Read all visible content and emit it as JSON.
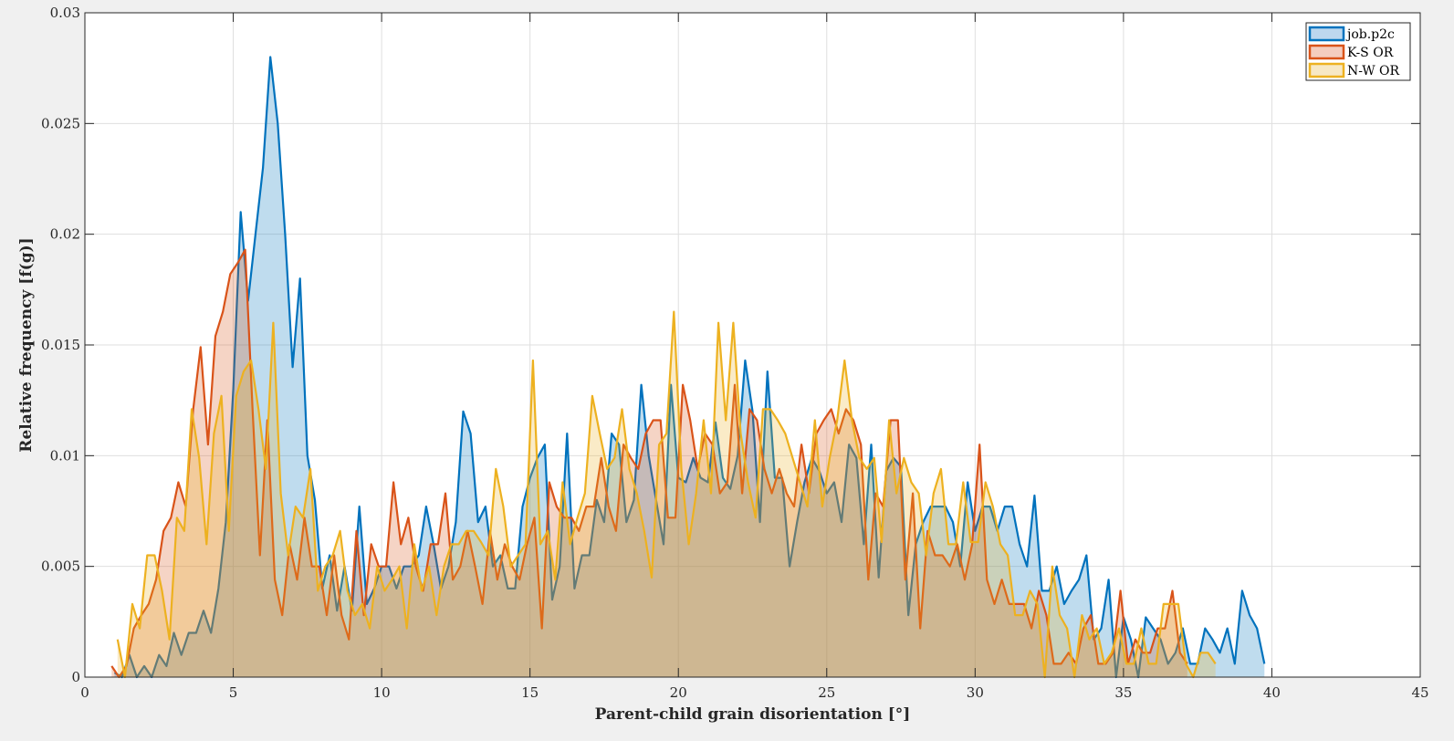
{
  "chart_data": {
    "type": "area",
    "title": "",
    "xlabel": "Parent-child grain disorientation [°]",
    "ylabel": "Relative frequency [f(g)]",
    "xlim": [
      0,
      45
    ],
    "ylim": [
      0,
      0.03
    ],
    "xticks": [
      "0",
      "5",
      "10",
      "15",
      "20",
      "25",
      "30",
      "35",
      "40",
      "45"
    ],
    "yticks": [
      "0",
      "0.005",
      "0.01",
      "0.015",
      "0.02",
      "0.025",
      "0.03"
    ],
    "grid": true,
    "legend_position": "northeast",
    "series": [
      {
        "name": "job.p2c",
        "color": "#0072BD",
        "fill": "#BDD7EE",
        "x_start": 1.0,
        "x_step": 0.25,
        "values": [
          0.0002,
          0.0,
          0.001,
          0.0,
          0.0005,
          0.0,
          0.001,
          0.0005,
          0.002,
          0.001,
          0.002,
          0.002,
          0.003,
          0.002,
          0.004,
          0.007,
          0.013,
          0.021,
          0.017,
          0.02,
          0.023,
          0.028,
          0.025,
          0.02,
          0.014,
          0.018,
          0.01,
          0.008,
          0.004,
          0.0055,
          0.003,
          0.005,
          0.003,
          0.0077,
          0.0033,
          0.004,
          0.005,
          0.005,
          0.004,
          0.005,
          0.005,
          0.0055,
          0.0077,
          0.006,
          0.004,
          0.005,
          0.007,
          0.012,
          0.011,
          0.007,
          0.0077,
          0.005,
          0.0055,
          0.004,
          0.004,
          0.0077,
          0.009,
          0.0099,
          0.0105,
          0.0035,
          0.005,
          0.011,
          0.004,
          0.0055,
          0.0055,
          0.008,
          0.007,
          0.011,
          0.0105,
          0.007,
          0.008,
          0.0132,
          0.01,
          0.008,
          0.006,
          0.0132,
          0.009,
          0.0088,
          0.0099,
          0.009,
          0.0088,
          0.0115,
          0.009,
          0.0085,
          0.01,
          0.0143,
          0.012,
          0.007,
          0.0138,
          0.009,
          0.009,
          0.005,
          0.007,
          0.0088,
          0.0099,
          0.0093,
          0.0083,
          0.0088,
          0.007,
          0.0105,
          0.0099,
          0.006,
          0.0105,
          0.0045,
          0.0093,
          0.0099,
          0.0095,
          0.0028,
          0.006,
          0.007,
          0.0077,
          0.0077,
          0.0077,
          0.007,
          0.005,
          0.0088,
          0.0066,
          0.0077,
          0.0077,
          0.0066,
          0.0077,
          0.0077,
          0.006,
          0.005,
          0.0082,
          0.0039,
          0.0039,
          0.005,
          0.0033,
          0.0039,
          0.0044,
          0.0055,
          0.0017,
          0.0022,
          0.0044,
          0.0,
          0.0027,
          0.0017,
          0.0,
          0.0027,
          0.0022,
          0.0017,
          0.0006,
          0.0011,
          0.0022,
          0.0006,
          0.0006,
          0.0022,
          0.0017,
          0.0011,
          0.0022,
          0.0006,
          0.0039,
          0.0028,
          0.0022,
          0.0006
        ]
      },
      {
        "name": "K-S OR",
        "color": "#D95319",
        "fill": "#F4CDBF",
        "x_start": 0.9,
        "x_step": 0.25,
        "values": [
          0.0005,
          0.0,
          0.0005,
          0.0022,
          0.0028,
          0.0033,
          0.0044,
          0.0066,
          0.0072,
          0.0088,
          0.0077,
          0.0121,
          0.0149,
          0.0105,
          0.0154,
          0.0165,
          0.0182,
          0.0187,
          0.0193,
          0.0121,
          0.0055,
          0.0116,
          0.0044,
          0.0028,
          0.006,
          0.0044,
          0.0072,
          0.005,
          0.005,
          0.0028,
          0.0055,
          0.0028,
          0.0017,
          0.0066,
          0.0028,
          0.006,
          0.005,
          0.005,
          0.0088,
          0.006,
          0.0072,
          0.005,
          0.0039,
          0.006,
          0.006,
          0.0083,
          0.0044,
          0.005,
          0.0066,
          0.005,
          0.0033,
          0.0066,
          0.0044,
          0.006,
          0.005,
          0.0044,
          0.006,
          0.0072,
          0.0022,
          0.0088,
          0.0077,
          0.0072,
          0.0072,
          0.0066,
          0.0077,
          0.0077,
          0.0099,
          0.0077,
          0.0066,
          0.0105,
          0.0099,
          0.0094,
          0.011,
          0.0116,
          0.0116,
          0.0072,
          0.0072,
          0.0132,
          0.0116,
          0.0094,
          0.011,
          0.0105,
          0.0083,
          0.0088,
          0.0132,
          0.0083,
          0.0121,
          0.0116,
          0.0094,
          0.0083,
          0.0094,
          0.0083,
          0.0077,
          0.0105,
          0.0083,
          0.011,
          0.0116,
          0.0121,
          0.011,
          0.0121,
          0.0116,
          0.0105,
          0.0044,
          0.0083,
          0.0077,
          0.0116,
          0.0116,
          0.0044,
          0.0083,
          0.0022,
          0.0066,
          0.0055,
          0.0055,
          0.005,
          0.006,
          0.0044,
          0.006,
          0.0105,
          0.0044,
          0.0033,
          0.0044,
          0.0033,
          0.0033,
          0.0033,
          0.0022,
          0.0039,
          0.0028,
          0.0006,
          0.0006,
          0.0011,
          0.0006,
          0.0022,
          0.0028,
          0.0006,
          0.0006,
          0.0011,
          0.0039,
          0.0006,
          0.0017,
          0.0011,
          0.0011,
          0.0022,
          0.0022,
          0.0039,
          0.0011,
          0.0006
        ]
      },
      {
        "name": "N-W OR",
        "color": "#EDB120",
        "fill": "#F7E8C4",
        "x_start": 1.1,
        "x_step": 0.25,
        "values": [
          0.0017,
          0.0,
          0.0033,
          0.0022,
          0.0055,
          0.0055,
          0.0039,
          0.0017,
          0.0072,
          0.0066,
          0.0121,
          0.0099,
          0.006,
          0.011,
          0.0127,
          0.0066,
          0.0127,
          0.0138,
          0.0143,
          0.0121,
          0.0094,
          0.016,
          0.0083,
          0.0055,
          0.0077,
          0.0072,
          0.0094,
          0.0039,
          0.005,
          0.0055,
          0.0066,
          0.0039,
          0.0028,
          0.0033,
          0.0022,
          0.005,
          0.0039,
          0.0044,
          0.005,
          0.0022,
          0.006,
          0.0039,
          0.005,
          0.0028,
          0.005,
          0.006,
          0.006,
          0.0066,
          0.0066,
          0.0061,
          0.0055,
          0.0094,
          0.0077,
          0.005,
          0.0055,
          0.006,
          0.0143,
          0.006,
          0.0066,
          0.0044,
          0.0088,
          0.006,
          0.0072,
          0.0083,
          0.0127,
          0.011,
          0.0094,
          0.0099,
          0.0121,
          0.0094,
          0.0083,
          0.0066,
          0.0045,
          0.0105,
          0.011,
          0.0165,
          0.0094,
          0.006,
          0.0083,
          0.0116,
          0.0083,
          0.016,
          0.0116,
          0.016,
          0.011,
          0.0088,
          0.0072,
          0.0121,
          0.0121,
          0.0116,
          0.011,
          0.0099,
          0.0088,
          0.0077,
          0.0116,
          0.0077,
          0.0099,
          0.0116,
          0.0143,
          0.0116,
          0.0099,
          0.0094,
          0.0099,
          0.0061,
          0.0116,
          0.0083,
          0.0099,
          0.0088,
          0.0083,
          0.0055,
          0.0083,
          0.0094,
          0.006,
          0.006,
          0.0088,
          0.0061,
          0.0061,
          0.0088,
          0.0077,
          0.006,
          0.0055,
          0.0028,
          0.0028,
          0.0039,
          0.0033,
          0.0,
          0.005,
          0.0028,
          0.0022,
          0.0,
          0.0028,
          0.0017,
          0.0022,
          0.0006,
          0.0011,
          0.0022,
          0.0006,
          0.0006,
          0.0022,
          0.0006,
          0.0006,
          0.0033,
          0.0033,
          0.0033,
          0.0006,
          0.0,
          0.0011,
          0.0011,
          0.0006
        ]
      }
    ]
  }
}
